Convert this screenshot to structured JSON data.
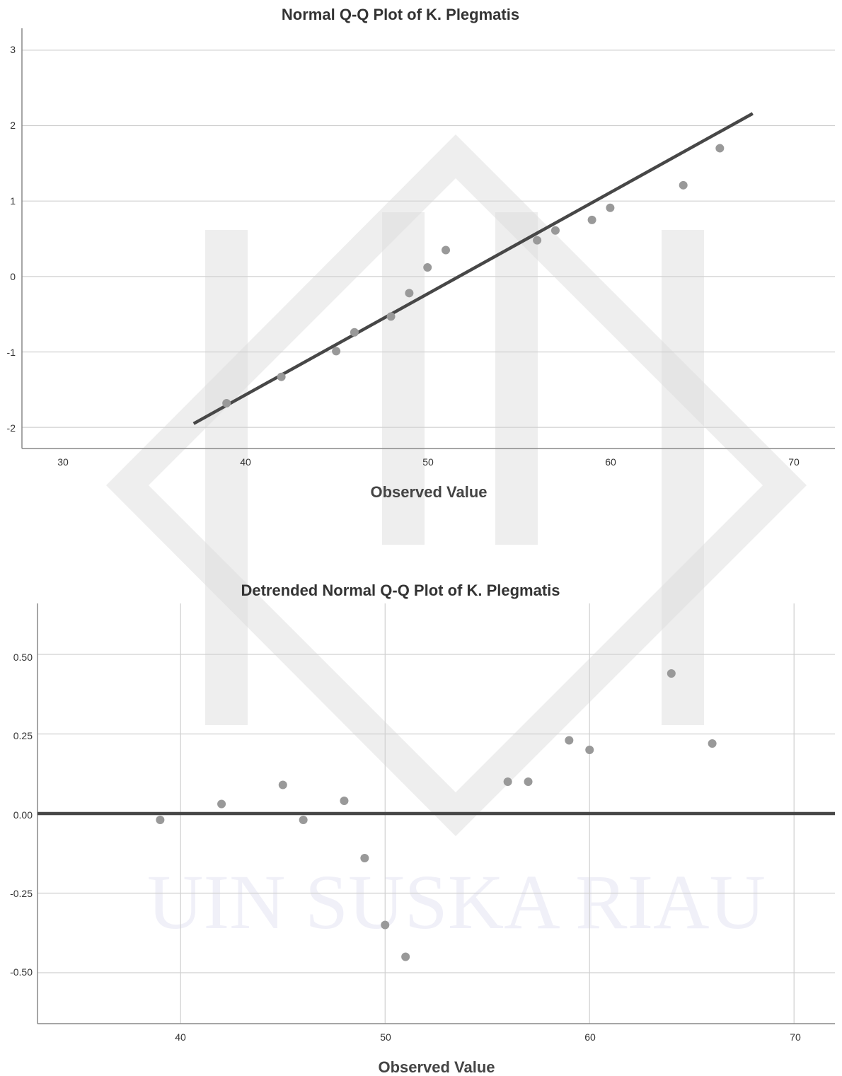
{
  "charts": [
    {
      "title": "Normal Q-Q Plot of K. Plegmatis",
      "xlabel": "Observed Value",
      "xticks": [
        "30",
        "40",
        "50",
        "60",
        "70"
      ],
      "yticks": [
        "3",
        "2",
        "1",
        "0",
        "-1",
        "-2"
      ]
    },
    {
      "title": "Detrended Normal Q-Q Plot of K. Plegmatis",
      "xlabel": "Observed Value",
      "xticks": [
        "40",
        "50",
        "60",
        "70"
      ],
      "yticks": [
        "0.50",
        "0.25",
        "0.00",
        "-0.25",
        "-0.50"
      ]
    }
  ],
  "watermark": {
    "text": "UIN SUSKA RIAU"
  },
  "colors": {
    "points": "#999999",
    "line": "#474747",
    "grid": "#d0d0d0"
  },
  "chart_data": [
    {
      "type": "scatter",
      "title": "Normal Q-Q Plot of K. Plegmatis",
      "xlabel": "Observed Value",
      "ylabel": "",
      "xlim": [
        27.8,
        72.3
      ],
      "ylim": [
        -2.28,
        3.29
      ],
      "grid": {
        "x": false,
        "y": true
      },
      "points": [
        {
          "x": 39,
          "y": -1.68
        },
        {
          "x": 42,
          "y": -1.33
        },
        {
          "x": 45,
          "y": -0.99
        },
        {
          "x": 46,
          "y": -0.74
        },
        {
          "x": 48,
          "y": -0.53
        },
        {
          "x": 49,
          "y": -0.22
        },
        {
          "x": 50,
          "y": 0.12
        },
        {
          "x": 51,
          "y": 0.35
        },
        {
          "x": 56,
          "y": 0.48
        },
        {
          "x": 57,
          "y": 0.61
        },
        {
          "x": 59,
          "y": 0.75
        },
        {
          "x": 60,
          "y": 0.91
        },
        {
          "x": 64,
          "y": 1.21
        },
        {
          "x": 66,
          "y": 1.7
        }
      ],
      "reference_line": {
        "x": [
          37.2,
          67.8
        ],
        "y": [
          -1.95,
          2.16
        ]
      }
    },
    {
      "type": "scatter",
      "title": "Detrended Normal Q-Q Plot of K. Plegmatis",
      "xlabel": "Observed Value",
      "ylabel": "",
      "xlim": [
        33.0,
        72.0
      ],
      "ylim": [
        -0.66,
        0.66
      ],
      "grid": {
        "x": true,
        "y": true
      },
      "points": [
        {
          "x": 39,
          "y": -0.02
        },
        {
          "x": 42,
          "y": 0.03
        },
        {
          "x": 45,
          "y": 0.09
        },
        {
          "x": 46,
          "y": -0.02
        },
        {
          "x": 48,
          "y": 0.04
        },
        {
          "x": 49,
          "y": -0.14
        },
        {
          "x": 50,
          "y": -0.35
        },
        {
          "x": 51,
          "y": -0.45
        },
        {
          "x": 56,
          "y": 0.1
        },
        {
          "x": 57,
          "y": 0.1
        },
        {
          "x": 59,
          "y": 0.23
        },
        {
          "x": 60,
          "y": 0.2
        },
        {
          "x": 64,
          "y": 0.44
        },
        {
          "x": 66,
          "y": 0.22
        }
      ],
      "reference_line": {
        "x": [
          33.0,
          72.0
        ],
        "y": [
          0,
          0
        ]
      }
    }
  ]
}
